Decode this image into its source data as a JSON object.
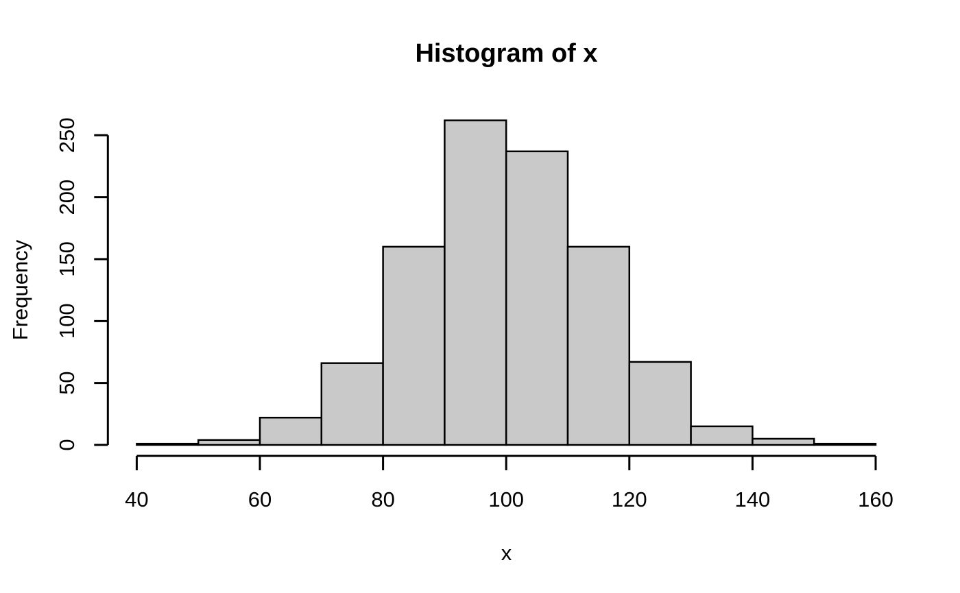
{
  "chart_data": {
    "type": "bar",
    "subtype": "histogram",
    "title": "Histogram of x",
    "xlabel": "x",
    "ylabel": "Frequency",
    "bin_width": 10,
    "bin_breaks": [
      40,
      50,
      60,
      70,
      80,
      90,
      100,
      110,
      120,
      130,
      140,
      150,
      160
    ],
    "counts": [
      1,
      4,
      22,
      66,
      160,
      262,
      237,
      160,
      67,
      15,
      5,
      1
    ],
    "x_ticks": [
      40,
      60,
      80,
      100,
      120,
      140,
      160
    ],
    "y_ticks": [
      0,
      50,
      100,
      150,
      200,
      250
    ],
    "xlim": [
      40,
      160
    ],
    "ylim": [
      0,
      262
    ],
    "grid": false,
    "legend": "none",
    "bar_fill_color": "#C9C9C9",
    "bar_border_color": "#000000",
    "axis_color": "#000000",
    "text_color": "#000000",
    "background_color": "#FFFFFF"
  }
}
